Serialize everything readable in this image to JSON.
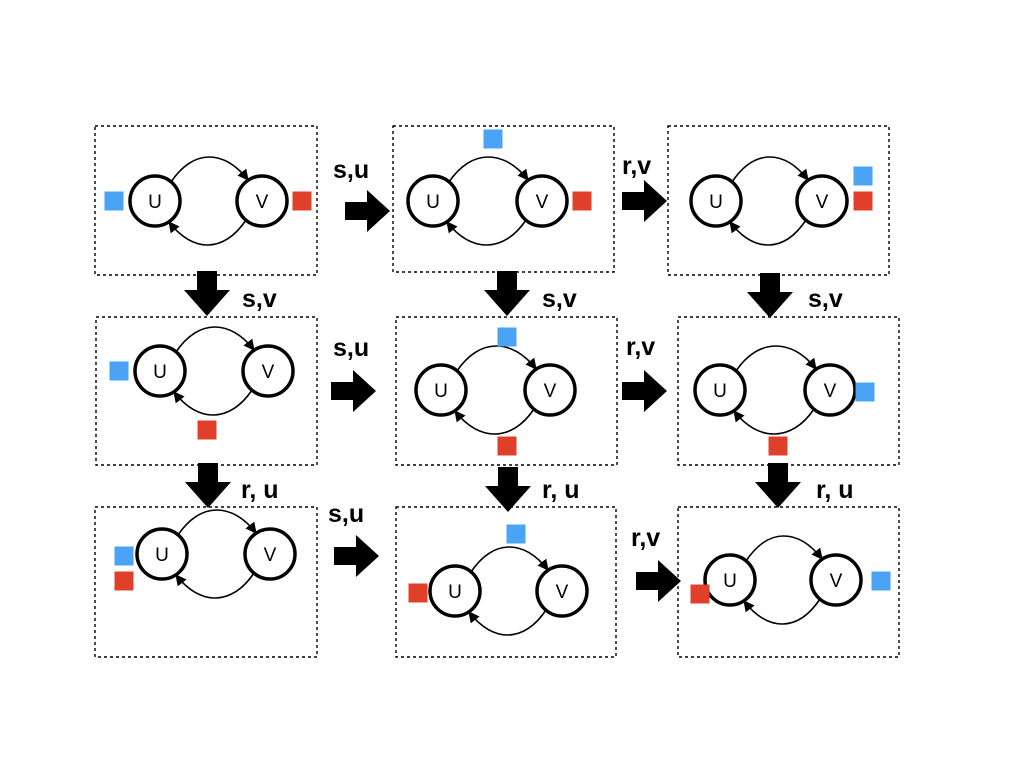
{
  "colors": {
    "blue": "#4aa3f5",
    "red": "#e0402a",
    "line": "#000000"
  },
  "node_labels": {
    "u": "U",
    "v": "V"
  },
  "transition_labels": {
    "r1_c1_c2": "s,u",
    "r1_c2_c3": "r,v",
    "c1_r1_r2": "s,v",
    "c2_r1_r2": "s,v",
    "c3_r1_r2": "s,v",
    "r2_c1_c2": "s,u",
    "r2_c2_c3": "r,v",
    "c1_r2_r3": "r, u",
    "c2_r2_r3": "r, u",
    "c3_r2_r3": "r, u",
    "r3_c1_c2": "s,u",
    "r3_c2_c3": "r,v"
  },
  "states": [
    {
      "name": "state-1-1",
      "tokens": [
        {
          "color": "blue",
          "at": "left of U"
        },
        {
          "color": "red",
          "at": "right of V"
        }
      ]
    },
    {
      "name": "state-1-2",
      "tokens": [
        {
          "color": "blue",
          "at": "above"
        },
        {
          "color": "red",
          "at": "right of V"
        }
      ]
    },
    {
      "name": "state-1-3",
      "tokens": [
        {
          "color": "blue",
          "at": "right of V"
        },
        {
          "color": "red",
          "at": "right of V"
        }
      ]
    },
    {
      "name": "state-2-1",
      "tokens": [
        {
          "color": "blue",
          "at": "left of U"
        },
        {
          "color": "red",
          "at": "below"
        }
      ]
    },
    {
      "name": "state-2-2",
      "tokens": [
        {
          "color": "blue",
          "at": "above"
        },
        {
          "color": "red",
          "at": "below"
        }
      ]
    },
    {
      "name": "state-2-3",
      "tokens": [
        {
          "color": "blue",
          "at": "right of V"
        },
        {
          "color": "red",
          "at": "below"
        }
      ]
    },
    {
      "name": "state-3-1",
      "tokens": [
        {
          "color": "blue",
          "at": "left of U"
        },
        {
          "color": "red",
          "at": "left of U"
        }
      ]
    },
    {
      "name": "state-3-2",
      "tokens": [
        {
          "color": "blue",
          "at": "above"
        },
        {
          "color": "red",
          "at": "left of U"
        }
      ]
    },
    {
      "name": "state-3-3",
      "tokens": [
        {
          "color": "blue",
          "at": "right of V"
        },
        {
          "color": "red",
          "at": "left of U"
        }
      ]
    }
  ]
}
